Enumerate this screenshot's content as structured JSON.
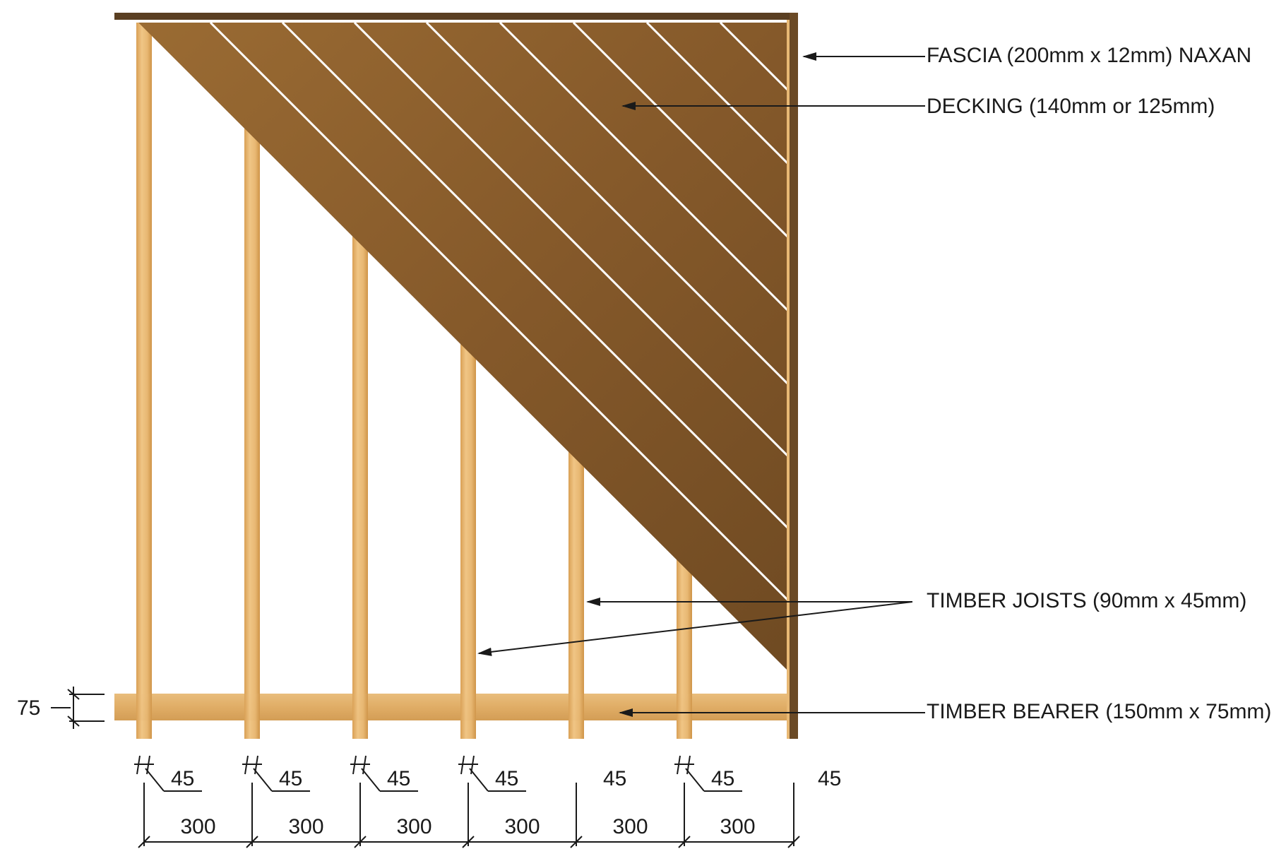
{
  "labels": {
    "fascia": "FASCIA (200mm x 12mm) NAXAN",
    "decking": "DECKING (140mm or 125mm)",
    "joists": "TIMBER JOISTS (90mm x 45mm)",
    "bearer": "TIMBER BEARER (150mm x 75mm)"
  },
  "dimensions": {
    "bearer_height": "75",
    "joist_widths": [
      "45",
      "45",
      "45",
      "45",
      "45",
      "45",
      "45"
    ],
    "spacings": [
      "300",
      "300",
      "300",
      "300",
      "300",
      "300"
    ]
  },
  "colors": {
    "joist": "#e6b46c",
    "joist_edge": "#c98f45",
    "bearer": "#e3b06a",
    "decking": "#8a5f2a",
    "decking_dark": "#6e4a1f",
    "fascia": "#5a3f22",
    "line": "#1a1a1a"
  }
}
